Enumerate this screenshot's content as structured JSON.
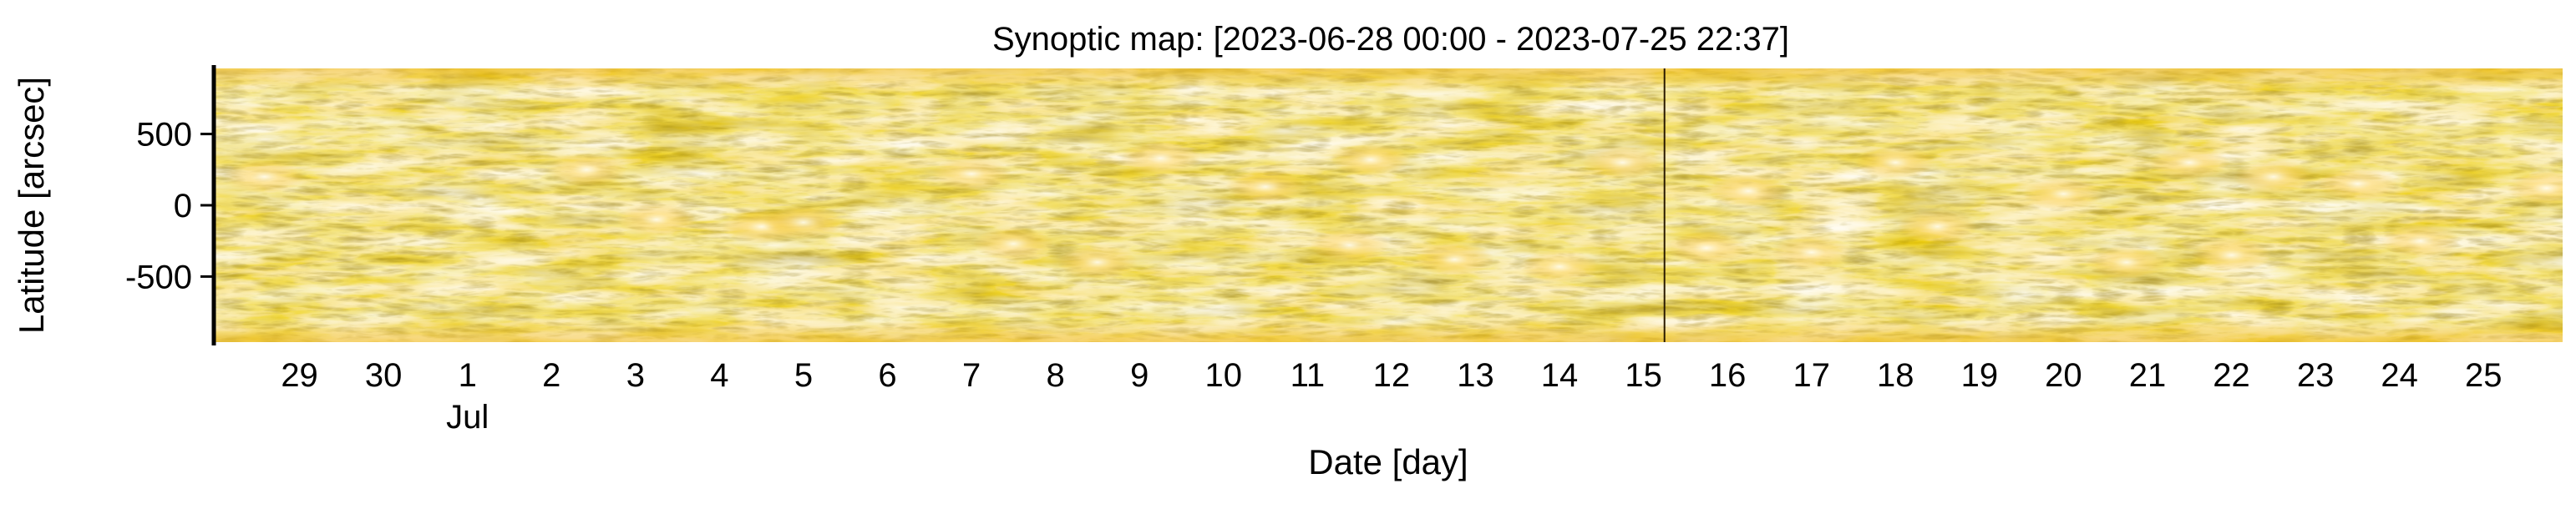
{
  "chart_data": {
    "type": "heatmap",
    "title": "Synoptic map: [2023-06-28 00:00 - 2023-07-25 22:37]",
    "xlabel": "Date [day]",
    "ylabel": "Latitude [arcsec]",
    "x_range": [
      "2023-06-28 00:00",
      "2023-07-25 22:37"
    ],
    "ylim": [
      -960,
      960
    ],
    "y_ticks": [
      {
        "value": 500,
        "label": "500"
      },
      {
        "value": 0,
        "label": "0"
      },
      {
        "value": -500,
        "label": "-500"
      }
    ],
    "x_ticks": [
      {
        "date": "2023-06-29",
        "label": "29"
      },
      {
        "date": "2023-06-30",
        "label": "30"
      },
      {
        "date": "2023-07-01",
        "label": "1",
        "sublabel": "Jul"
      },
      {
        "date": "2023-07-02",
        "label": "2"
      },
      {
        "date": "2023-07-03",
        "label": "3"
      },
      {
        "date": "2023-07-04",
        "label": "4"
      },
      {
        "date": "2023-07-05",
        "label": "5"
      },
      {
        "date": "2023-07-06",
        "label": "6"
      },
      {
        "date": "2023-07-07",
        "label": "7"
      },
      {
        "date": "2023-07-08",
        "label": "8"
      },
      {
        "date": "2023-07-09",
        "label": "9"
      },
      {
        "date": "2023-07-10",
        "label": "10"
      },
      {
        "date": "2023-07-11",
        "label": "11"
      },
      {
        "date": "2023-07-12",
        "label": "12"
      },
      {
        "date": "2023-07-13",
        "label": "13"
      },
      {
        "date": "2023-07-14",
        "label": "14"
      },
      {
        "date": "2023-07-15",
        "label": "15"
      },
      {
        "date": "2023-07-16",
        "label": "16"
      },
      {
        "date": "2023-07-17",
        "label": "17"
      },
      {
        "date": "2023-07-18",
        "label": "18"
      },
      {
        "date": "2023-07-19",
        "label": "19"
      },
      {
        "date": "2023-07-20",
        "label": "20"
      },
      {
        "date": "2023-07-21",
        "label": "21"
      },
      {
        "date": "2023-07-22",
        "label": "22"
      },
      {
        "date": "2023-07-23",
        "label": "23"
      },
      {
        "date": "2023-07-24",
        "label": "24"
      },
      {
        "date": "2023-07-25",
        "label": "25"
      }
    ],
    "colormap": [
      "#2a1a00",
      "#6b4800",
      "#a87400",
      "#d89a00",
      "#f2bb2a",
      "#ffe9a0",
      "#fffbe8"
    ],
    "divider_date": "2023-07-15 06:00",
    "bright_regions": [
      {
        "date": "2023-06-28 14:00",
        "lat": 200
      },
      {
        "date": "2023-07-02 10:00",
        "lat": 250
      },
      {
        "date": "2023-07-03 06:00",
        "lat": -100
      },
      {
        "date": "2023-07-04 12:00",
        "lat": -150
      },
      {
        "date": "2023-07-05 00:00",
        "lat": -120
      },
      {
        "date": "2023-07-07 00:00",
        "lat": 220
      },
      {
        "date": "2023-07-07 12:00",
        "lat": -270
      },
      {
        "date": "2023-07-08 12:00",
        "lat": -400
      },
      {
        "date": "2023-07-09 06:00",
        "lat": 330
      },
      {
        "date": "2023-07-10 12:00",
        "lat": 130
      },
      {
        "date": "2023-07-11 18:00",
        "lat": 320
      },
      {
        "date": "2023-07-11 12:00",
        "lat": -280
      },
      {
        "date": "2023-07-12 18:00",
        "lat": -380
      },
      {
        "date": "2023-07-14 00:00",
        "lat": -430
      },
      {
        "date": "2023-07-14 18:00",
        "lat": 300
      },
      {
        "date": "2023-07-15 18:00",
        "lat": -300
      },
      {
        "date": "2023-07-16 06:00",
        "lat": 100
      },
      {
        "date": "2023-07-17 00:00",
        "lat": -330
      },
      {
        "date": "2023-07-18 00:00",
        "lat": 300
      },
      {
        "date": "2023-07-18 12:00",
        "lat": -150
      },
      {
        "date": "2023-07-20 00:00",
        "lat": 80
      },
      {
        "date": "2023-07-20 18:00",
        "lat": -400
      },
      {
        "date": "2023-07-21 12:00",
        "lat": 300
      },
      {
        "date": "2023-07-22 00:00",
        "lat": -350
      },
      {
        "date": "2023-07-22 12:00",
        "lat": 200
      },
      {
        "date": "2023-07-23 12:00",
        "lat": 150
      },
      {
        "date": "2023-07-24 06:00",
        "lat": -250
      },
      {
        "date": "2023-07-25 18:00",
        "lat": 120
      }
    ]
  }
}
